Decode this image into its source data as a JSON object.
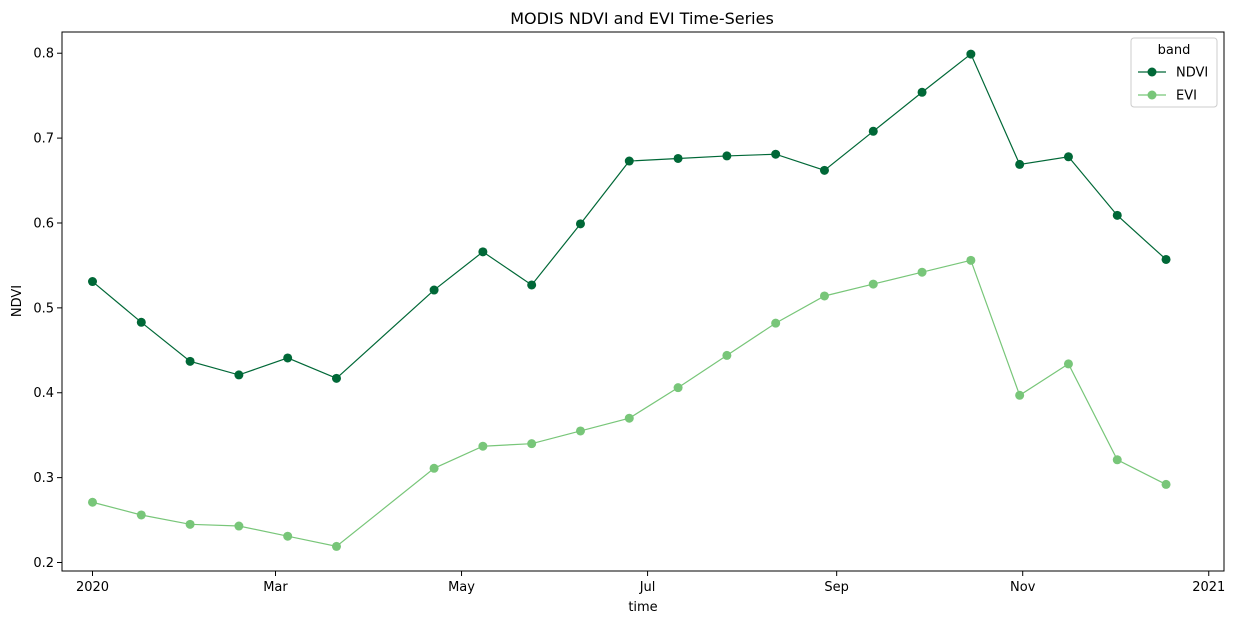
{
  "chart_data": {
    "type": "line",
    "title": "MODIS NDVI and EVI Time-Series",
    "xlabel": "time",
    "ylabel": "NDVI",
    "x_type": "date",
    "xlim": [
      "2019-12-22",
      "2021-01-06"
    ],
    "ylim": [
      0.19,
      0.825
    ],
    "x_ticks": [
      {
        "date": "2020-01-01",
        "label": "2020"
      },
      {
        "date": "2020-03-01",
        "label": "Mar"
      },
      {
        "date": "2020-05-01",
        "label": "May"
      },
      {
        "date": "2020-07-01",
        "label": "Jul"
      },
      {
        "date": "2020-09-01",
        "label": "Sep"
      },
      {
        "date": "2020-11-01",
        "label": "Nov"
      },
      {
        "date": "2021-01-01",
        "label": "2021"
      }
    ],
    "y_ticks": [
      {
        "value": 0.2,
        "label": "0.2"
      },
      {
        "value": 0.3,
        "label": "0.3"
      },
      {
        "value": 0.4,
        "label": "0.4"
      },
      {
        "value": 0.5,
        "label": "0.5"
      },
      {
        "value": 0.6,
        "label": "0.6"
      },
      {
        "value": 0.7,
        "label": "0.7"
      },
      {
        "value": 0.8,
        "label": "0.8"
      }
    ],
    "x": [
      "2020-01-01",
      "2020-01-17",
      "2020-02-02",
      "2020-02-18",
      "2020-03-05",
      "2020-03-21",
      "2020-04-22",
      "2020-05-08",
      "2020-05-24",
      "2020-06-09",
      "2020-06-25",
      "2020-07-11",
      "2020-07-27",
      "2020-08-12",
      "2020-08-28",
      "2020-09-13",
      "2020-09-29",
      "2020-10-15",
      "2020-10-31",
      "2020-11-16",
      "2020-12-02",
      "2020-12-18"
    ],
    "series": [
      {
        "name": "NDVI",
        "color": "#006837",
        "marker": "circle",
        "values": [
          0.531,
          0.483,
          0.437,
          0.421,
          0.441,
          0.417,
          0.521,
          0.566,
          0.527,
          0.599,
          0.673,
          0.676,
          0.679,
          0.681,
          0.662,
          0.708,
          0.754,
          0.799,
          0.669,
          0.678,
          0.609,
          0.557
        ]
      },
      {
        "name": "EVI",
        "color": "#78c679",
        "marker": "circle",
        "values": [
          0.271,
          0.256,
          0.245,
          0.243,
          0.231,
          0.219,
          0.311,
          0.337,
          0.34,
          0.355,
          0.37,
          0.406,
          0.444,
          0.482,
          0.514,
          0.528,
          0.542,
          0.556,
          0.397,
          0.434,
          0.321,
          0.292
        ]
      }
    ],
    "grid": false,
    "legend": {
      "title": "band",
      "placement": "top-right"
    }
  }
}
